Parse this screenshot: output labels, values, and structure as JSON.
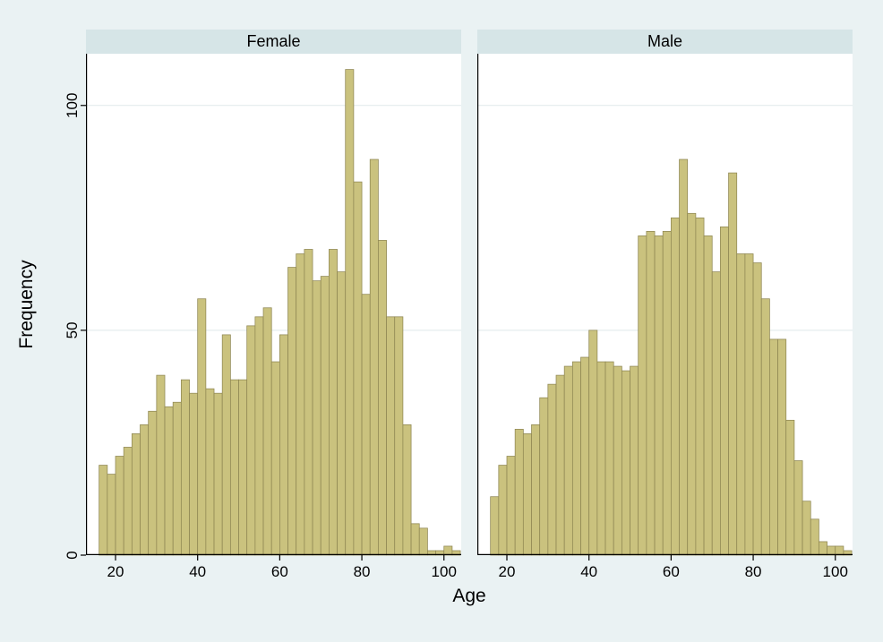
{
  "chart_data": {
    "type": "bar",
    "subtype": "histogram",
    "title": "",
    "xlabel": "Age",
    "ylabel": "Frequency",
    "legend": "none",
    "grid": "horizontal",
    "x_ticks": [
      20,
      40,
      60,
      80,
      100
    ],
    "y_ticks": [
      0,
      50,
      100
    ],
    "xlim": [
      12.8,
      104.2
    ],
    "ylim": [
      0,
      111.5
    ],
    "bin_start": 16,
    "bin_width": 2,
    "panels": [
      {
        "title": "Female",
        "values": [
          20,
          18,
          22,
          24,
          27,
          29,
          32,
          40,
          33,
          34,
          39,
          36,
          57,
          37,
          36,
          49,
          39,
          39,
          51,
          53,
          55,
          43,
          49,
          64,
          67,
          68,
          61,
          62,
          68,
          63,
          108,
          83,
          58,
          88,
          70,
          53,
          53,
          29,
          7,
          6,
          1,
          1,
          2,
          1
        ]
      },
      {
        "title": "Male",
        "values": [
          13,
          20,
          22,
          28,
          27,
          29,
          35,
          38,
          40,
          42,
          43,
          44,
          50,
          43,
          43,
          42,
          41,
          42,
          71,
          72,
          71,
          72,
          75,
          88,
          76,
          75,
          71,
          63,
          73,
          85,
          67,
          67,
          65,
          57,
          48,
          48,
          30,
          21,
          12,
          8,
          3,
          2,
          2,
          1
        ]
      }
    ],
    "colors": {
      "background": "#eaf2f3",
      "panel_strip": "#d6e5e7",
      "plot_bg": "#ffffff",
      "bar_fill": "#cac27e",
      "bar_edge": "#8f8753",
      "grid": "#dfe9ea",
      "axis": "#000000",
      "text": "#000000"
    }
  }
}
